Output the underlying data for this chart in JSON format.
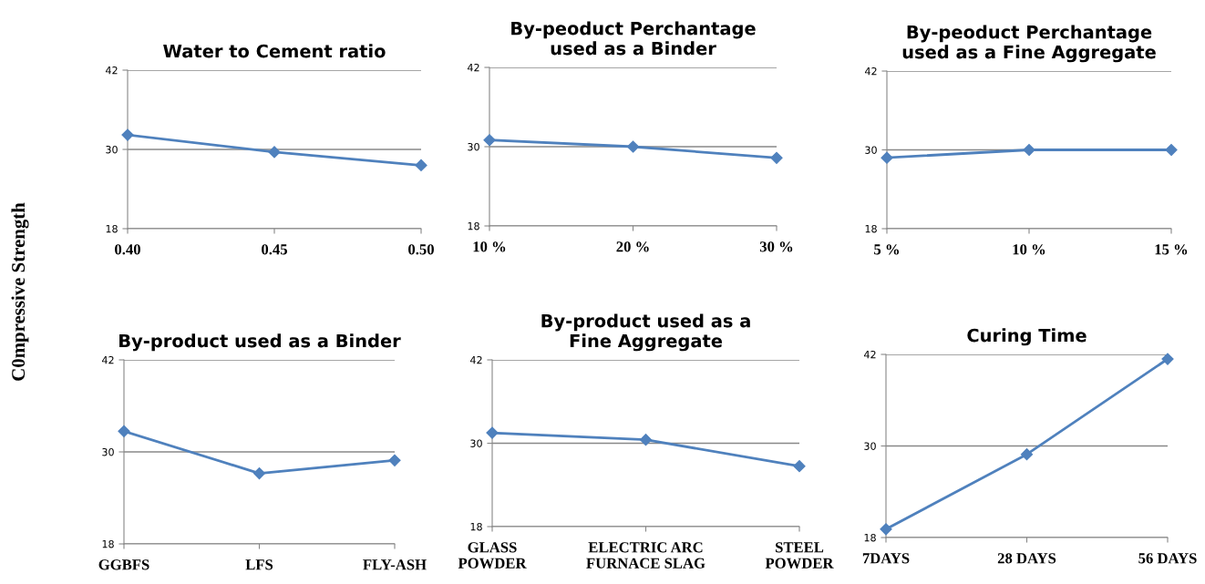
{
  "chart_data": [
    {
      "type": "line",
      "title": "Water to Cement ratio",
      "ylabel": "C0mpressive Strength",
      "categories": [
        "0.40",
        "0.45",
        "0.50"
      ],
      "series": [
        {
          "color": "#4f81bd",
          "values": [
            32.2,
            29.6,
            27.6
          ]
        }
      ],
      "ylim": [
        18,
        42
      ],
      "yticks": [
        18,
        30,
        42
      ],
      "grid": "y",
      "marker": "diamond",
      "line_style": "solid",
      "legend": false
    },
    {
      "type": "line",
      "title": "By-peoduct Perchantage\nused as a Binder",
      "categories": [
        "10 %",
        "20 %",
        "30 %"
      ],
      "series": [
        {
          "color": "#4f81bd",
          "values": [
            31.0,
            30.0,
            28.3
          ]
        }
      ],
      "ylim": [
        18,
        42
      ],
      "yticks": [
        18,
        30,
        42
      ],
      "grid": "y",
      "marker": "diamond",
      "line_style": "solid",
      "legend": false
    },
    {
      "type": "line",
      "title": "By-peoduct Perchantage\nused as a Fine Aggregate",
      "categories": [
        "5 %",
        "10 %",
        "15 %"
      ],
      "series": [
        {
          "color": "#4f81bd",
          "values": [
            28.8,
            30.0,
            30.0
          ]
        }
      ],
      "ylim": [
        18,
        42
      ],
      "yticks": [
        18,
        30,
        42
      ],
      "grid": "y",
      "marker": "diamond",
      "line_style": "solid",
      "legend": false
    },
    {
      "type": "line",
      "title": "By-product used as a Binder",
      "categories": [
        "GGBFS",
        "LFS",
        "FLY-ASH"
      ],
      "series": [
        {
          "color": "#4f81bd",
          "values": [
            32.7,
            27.2,
            28.9
          ]
        }
      ],
      "ylim": [
        18,
        42
      ],
      "yticks": [
        18,
        30,
        42
      ],
      "grid": "y",
      "marker": "diamond",
      "line_style": "solid",
      "legend": false
    },
    {
      "type": "line",
      "title": "By-product used as a\nFine Aggregate",
      "categories": [
        "GLASS\nPOWDER",
        "ELECTRIC ARC\nFURNACE SLAG",
        "STEEL\nPOWDER"
      ],
      "series": [
        {
          "color": "#4f81bd",
          "values": [
            31.5,
            30.5,
            26.7
          ]
        }
      ],
      "ylim": [
        18,
        42
      ],
      "yticks": [
        18,
        30,
        42
      ],
      "grid": "y",
      "marker": "diamond",
      "line_style": "solid",
      "legend": false
    },
    {
      "type": "line",
      "title": "Curing Time",
      "categories": [
        "7DAYS",
        "28 DAYS",
        "56 DAYS"
      ],
      "series": [
        {
          "color": "#4f81bd",
          "values": [
            19.1,
            28.9,
            41.4
          ]
        }
      ],
      "ylim": [
        18,
        42
      ],
      "yticks": [
        18,
        30,
        42
      ],
      "grid": "y",
      "marker": "diamond",
      "line_style": "solid",
      "legend": false
    }
  ]
}
